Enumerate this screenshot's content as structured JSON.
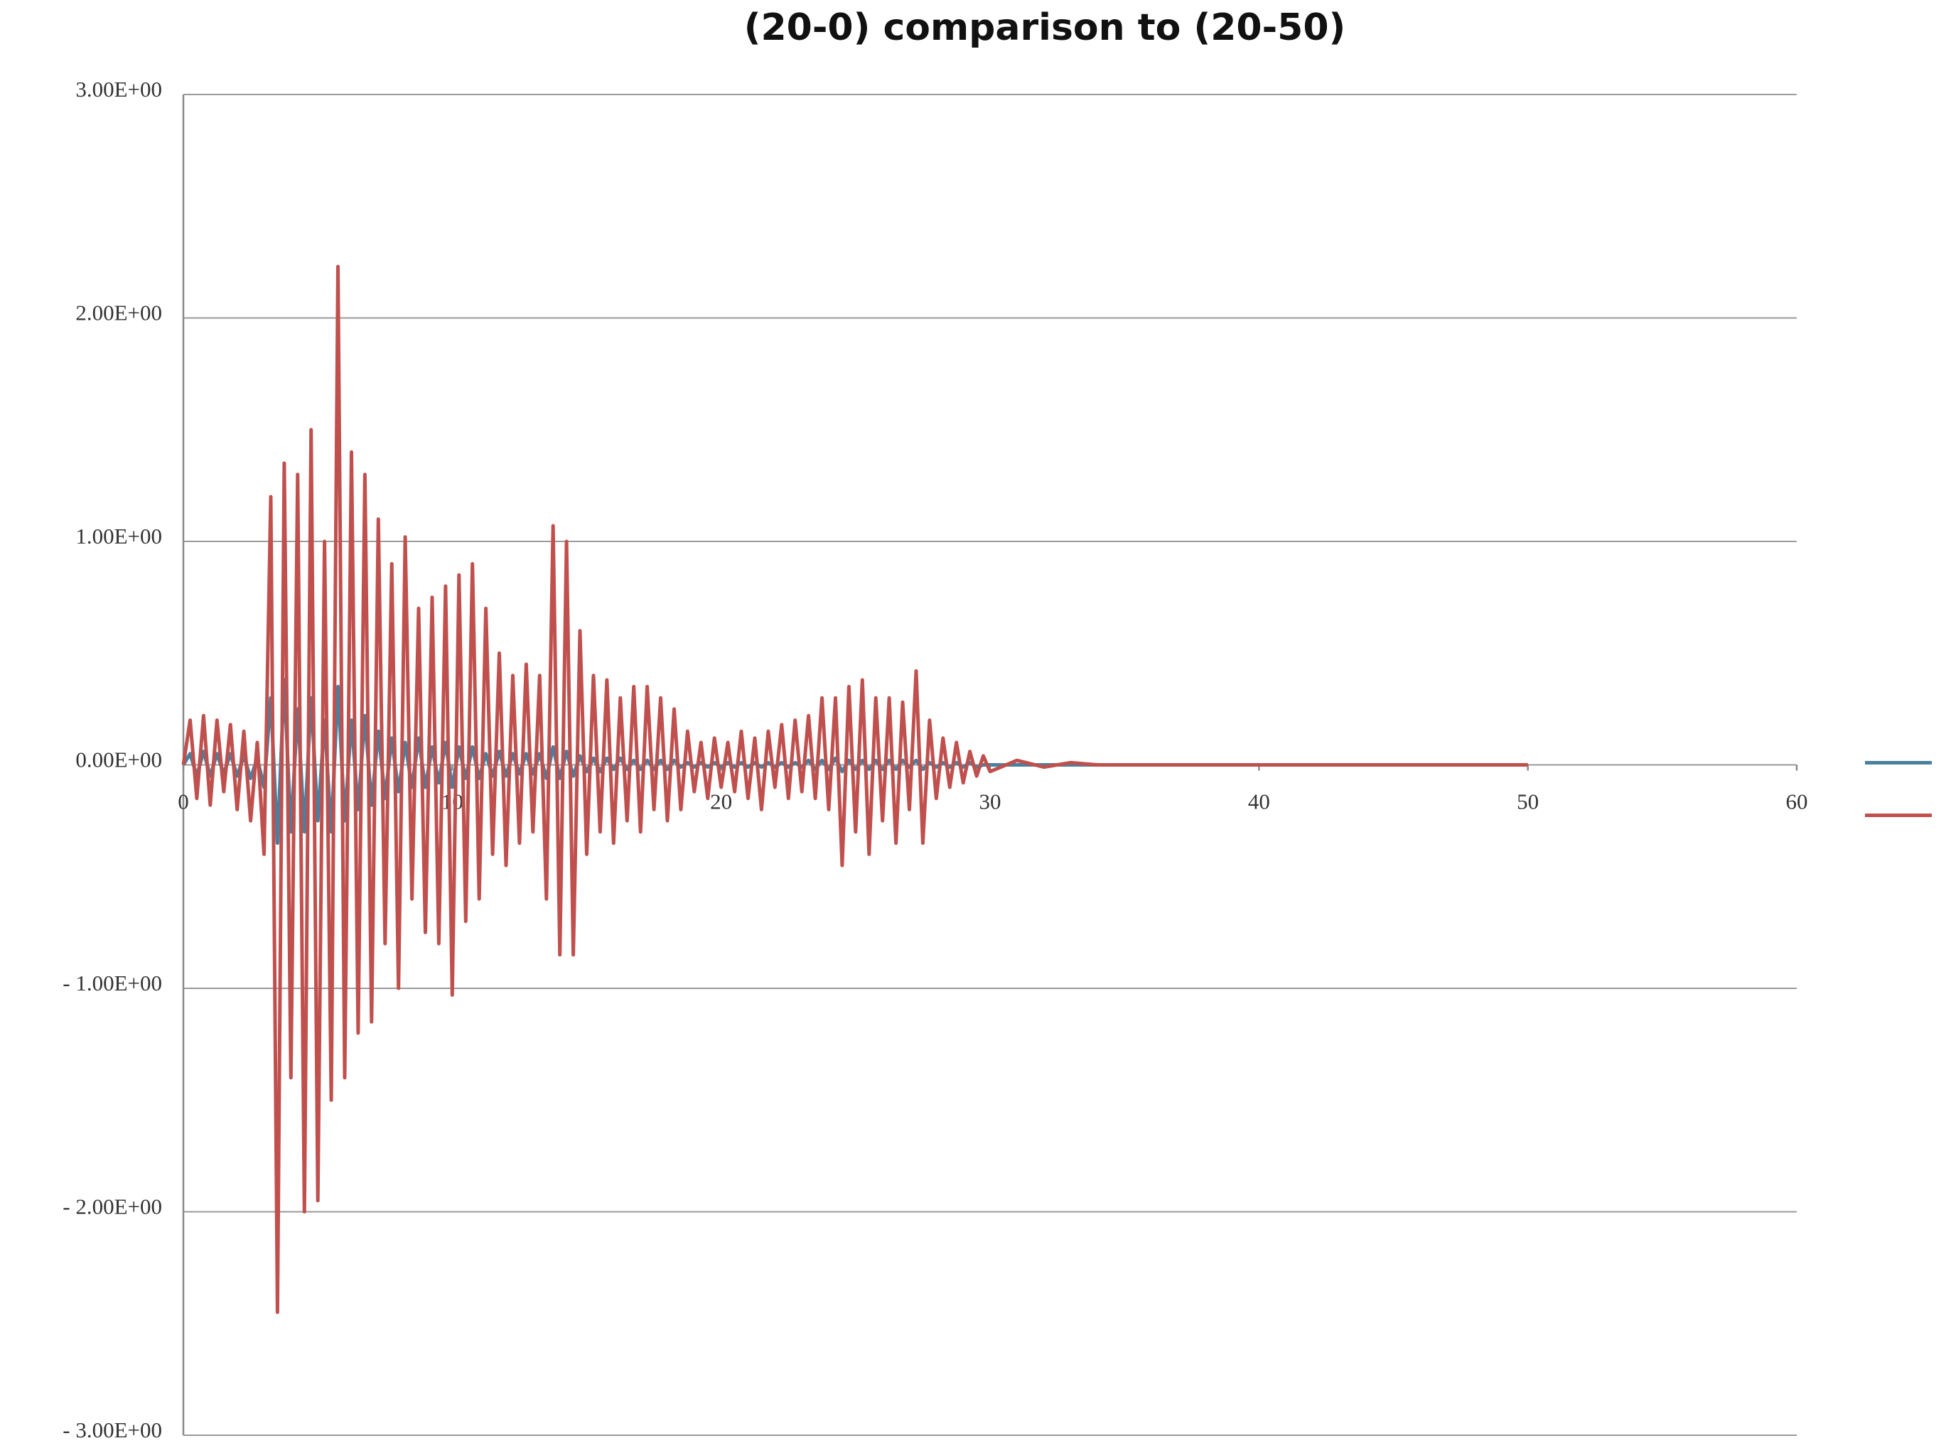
{
  "chart_data": {
    "type": "line",
    "title": "(20-0) comparison to (20-50)",
    "xlim": [
      0,
      60
    ],
    "xticks": [
      0,
      10,
      20,
      30,
      40,
      50,
      60
    ],
    "ylim": [
      -3,
      3
    ],
    "yticks": [
      {
        "value": 3,
        "label": "3.00E+00"
      },
      {
        "value": 2,
        "label": "2.00E+00"
      },
      {
        "value": 1,
        "label": "1.00E+00"
      },
      {
        "value": 0,
        "label": "0.00E+00"
      },
      {
        "value": -1,
        "label": "- 1.00E+00"
      },
      {
        "value": -2,
        "label": "- 2.00E+00"
      },
      {
        "value": -3,
        "label": "- 3.00E+00"
      }
    ],
    "grid": true,
    "legend": "right",
    "x": [
      0,
      0.25,
      0.5,
      0.75,
      1,
      1.25,
      1.5,
      1.75,
      2,
      2.25,
      2.5,
      2.75,
      3,
      3.25,
      3.5,
      3.75,
      4,
      4.25,
      4.5,
      4.75,
      5,
      5.25,
      5.5,
      5.75,
      6,
      6.25,
      6.5,
      6.75,
      7,
      7.25,
      7.5,
      7.75,
      8,
      8.25,
      8.5,
      8.75,
      9,
      9.25,
      9.5,
      9.75,
      10,
      10.25,
      10.5,
      10.75,
      11,
      11.25,
      11.5,
      11.75,
      12,
      12.25,
      12.5,
      12.75,
      13,
      13.25,
      13.5,
      13.75,
      14,
      14.25,
      14.5,
      14.75,
      15,
      15.25,
      15.5,
      15.75,
      16,
      16.25,
      16.5,
      16.75,
      17,
      17.25,
      17.5,
      17.75,
      18,
      18.25,
      18.5,
      18.75,
      19,
      19.25,
      19.5,
      19.75,
      20,
      20.25,
      20.5,
      20.75,
      21,
      21.25,
      21.5,
      21.75,
      22,
      22.25,
      22.5,
      22.75,
      23,
      23.25,
      23.5,
      23.75,
      24,
      24.25,
      24.5,
      24.75,
      25,
      25.25,
      25.5,
      25.75,
      26,
      26.25,
      26.5,
      26.75,
      27,
      27.25,
      27.5,
      27.75,
      28,
      28.25,
      28.5,
      28.75,
      29,
      29.25,
      29.5,
      29.75,
      30,
      31,
      32,
      33,
      34,
      35,
      36,
      37,
      38,
      39,
      40,
      41,
      42,
      43,
      44,
      45,
      46,
      47,
      48,
      49,
      50
    ],
    "series": [
      {
        "color": "#4a7f9e",
        "values": [
          0,
          0.05,
          -0.05,
          0.06,
          -0.05,
          0.05,
          -0.04,
          0.05,
          -0.05,
          0.04,
          -0.06,
          0.03,
          -0.1,
          0.3,
          -0.35,
          0.38,
          -0.3,
          0.25,
          -0.3,
          0.3,
          -0.25,
          0.2,
          -0.3,
          0.35,
          -0.25,
          0.2,
          -0.2,
          0.22,
          -0.18,
          0.15,
          -0.15,
          0.12,
          -0.12,
          0.1,
          -0.1,
          0.12,
          -0.1,
          0.08,
          -0.08,
          0.1,
          -0.1,
          0.08,
          -0.06,
          0.08,
          -0.06,
          0.05,
          -0.05,
          0.06,
          -0.05,
          0.05,
          -0.04,
          0.05,
          -0.04,
          0.05,
          -0.06,
          0.08,
          -0.06,
          0.06,
          -0.05,
          0.04,
          -0.03,
          0.03,
          -0.03,
          0.03,
          -0.02,
          0.03,
          -0.02,
          0.02,
          -0.02,
          0.02,
          -0.02,
          0.02,
          -0.02,
          0.02,
          -0.01,
          0.01,
          -0.01,
          0.01,
          -0.01,
          0.01,
          -0.01,
          0.01,
          -0.01,
          0.01,
          -0.01,
          0.01,
          -0.01,
          0.01,
          -0.01,
          0.01,
          -0.01,
          0.01,
          -0.01,
          0.02,
          -0.02,
          0.02,
          -0.02,
          0.03,
          -0.03,
          0.02,
          -0.02,
          0.02,
          -0.02,
          0.02,
          -0.02,
          0.02,
          -0.02,
          0.02,
          -0.01,
          0.02,
          -0.02,
          0.01,
          -0.01,
          0.01,
          -0.01,
          0.01,
          -0.01,
          0.01,
          -0.01,
          0,
          0,
          0,
          0,
          0,
          0,
          0,
          0,
          0,
          0,
          0,
          0,
          0,
          0,
          0,
          0,
          0,
          0,
          0,
          0,
          0,
          0
        ]
      },
      {
        "color": "#c0504d",
        "values": [
          0,
          0.2,
          -0.15,
          0.22,
          -0.18,
          0.2,
          -0.12,
          0.18,
          -0.2,
          0.15,
          -0.25,
          0.1,
          -0.4,
          1.2,
          -2.45,
          1.35,
          -1.4,
          1.3,
          -2.0,
          1.5,
          -1.95,
          1.0,
          -1.5,
          2.23,
          -1.4,
          1.4,
          -1.2,
          1.3,
          -1.15,
          1.1,
          -0.8,
          0.9,
          -1.0,
          1.02,
          -0.6,
          0.7,
          -0.75,
          0.75,
          -0.8,
          0.8,
          -1.03,
          0.85,
          -0.7,
          0.9,
          -0.6,
          0.7,
          -0.4,
          0.5,
          -0.45,
          0.4,
          -0.35,
          0.45,
          -0.3,
          0.4,
          -0.6,
          1.07,
          -0.85,
          1.0,
          -0.85,
          0.6,
          -0.4,
          0.4,
          -0.3,
          0.38,
          -0.35,
          0.3,
          -0.25,
          0.35,
          -0.3,
          0.35,
          -0.2,
          0.3,
          -0.25,
          0.25,
          -0.2,
          0.15,
          -0.12,
          0.1,
          -0.15,
          0.12,
          -0.1,
          0.1,
          -0.12,
          0.15,
          -0.15,
          0.12,
          -0.2,
          0.15,
          -0.1,
          0.18,
          -0.15,
          0.2,
          -0.12,
          0.22,
          -0.15,
          0.3,
          -0.2,
          0.3,
          -0.45,
          0.35,
          -0.3,
          0.38,
          -0.4,
          0.3,
          -0.25,
          0.3,
          -0.35,
          0.28,
          -0.2,
          0.42,
          -0.35,
          0.2,
          -0.15,
          0.12,
          -0.1,
          0.1,
          -0.08,
          0.06,
          -0.05,
          0.04,
          -0.03,
          0.02,
          -0.01,
          0.01,
          0,
          0,
          0,
          0,
          0,
          0,
          0,
          0,
          0,
          0,
          0,
          0,
          0,
          0,
          0,
          0,
          0
        ]
      }
    ]
  }
}
